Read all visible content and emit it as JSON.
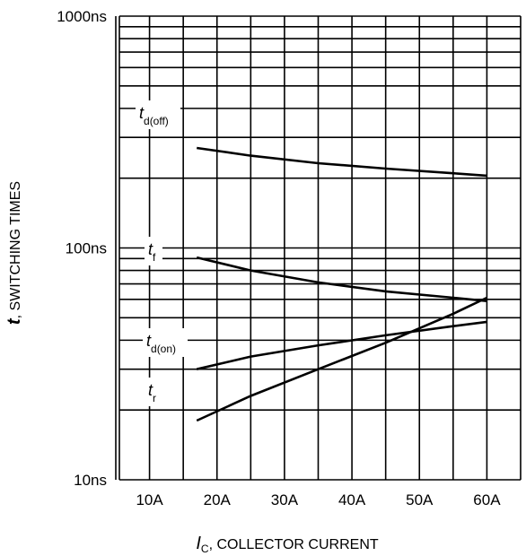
{
  "chart_data": {
    "type": "line",
    "scale": {
      "x": "linear",
      "y": "log"
    },
    "grid": true,
    "xlabel": {
      "var": "I",
      "sub": "C",
      "text": ", COLLECTOR CURRENT"
    },
    "ylabel": {
      "var": "t",
      "text": ", SWITCHING TIMES"
    },
    "xlim": [
      5,
      65
    ],
    "ylim": [
      10,
      1000
    ],
    "x_ticks": [
      10,
      20,
      30,
      40,
      50,
      60
    ],
    "x_tick_labels": [
      "10A",
      "20A",
      "30A",
      "40A",
      "50A",
      "60A"
    ],
    "y_tick_labels": [
      {
        "value": 1000,
        "label": "1000ns"
      },
      {
        "value": 100,
        "label": "100ns"
      },
      {
        "value": 10,
        "label": "10ns"
      }
    ],
    "series": [
      {
        "name": "td(off)",
        "label_var": "t",
        "label_sub": "d(off)",
        "x": [
          17,
          25,
          35,
          45,
          55,
          60
        ],
        "y": [
          270,
          250,
          232,
          220,
          210,
          205
        ]
      },
      {
        "name": "tf",
        "label_var": "t",
        "label_sub": "f",
        "x": [
          17,
          25,
          35,
          45,
          55,
          60
        ],
        "y": [
          91,
          80,
          71,
          65,
          61,
          59
        ]
      },
      {
        "name": "td(on)",
        "label_var": "t",
        "label_sub": "d(on)",
        "x": [
          17,
          25,
          35,
          45,
          55,
          60
        ],
        "y": [
          30,
          34,
          38,
          42,
          46,
          48
        ]
      },
      {
        "name": "tr",
        "label_var": "t",
        "label_sub": "r",
        "x": [
          17,
          25,
          35,
          45,
          55,
          60
        ],
        "y": [
          18,
          23,
          30,
          39,
          52,
          61
        ]
      }
    ]
  }
}
